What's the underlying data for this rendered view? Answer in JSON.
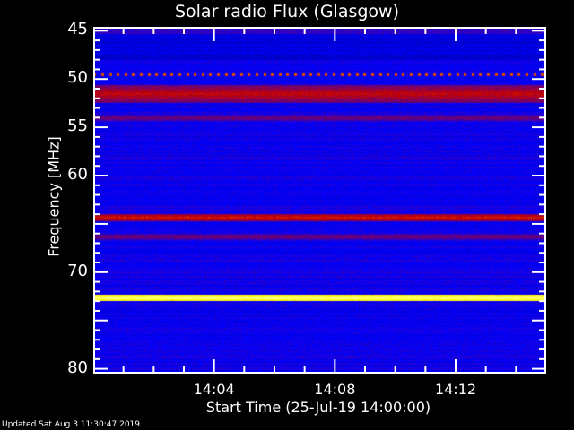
{
  "chart_data": {
    "type": "heatmap",
    "title": "Solar radio Flux (Glasgow)",
    "xlabel": "Start Time (25-Jul-19 14:00:00)",
    "ylabel": "Frequency [MHz]",
    "x_range": [
      "14:00",
      "14:15"
    ],
    "x_ticks": [
      "14:04",
      "14:08",
      "14:12"
    ],
    "y_range": [
      44.6,
      80.5
    ],
    "y_inverted": true,
    "y_ticks": [
      45,
      50,
      55,
      60,
      65,
      70,
      75,
      80
    ],
    "y_tick_labels": [
      "45",
      "50",
      "55",
      "60",
      "",
      "70",
      "",
      "80"
    ],
    "colormap": [
      "#000000",
      "#0000ff",
      "#c00000",
      "#ffff00",
      "#ffffff"
    ],
    "background_level": 0.3,
    "features": [
      {
        "freq_mhz": 49.5,
        "level": 0.55,
        "note": "periodic"
      },
      {
        "freq_mhz": 51.5,
        "level": 0.55
      },
      {
        "freq_mhz": 54.0,
        "level": 0.45
      },
      {
        "freq_mhz": 64.3,
        "level": 0.58
      },
      {
        "freq_mhz": 66.3,
        "level": 0.45
      },
      {
        "freq_mhz": 72.6,
        "level": 0.9
      }
    ]
  },
  "footer": {
    "updated": "Updated Sat Aug  3 11:30:47 2019"
  }
}
